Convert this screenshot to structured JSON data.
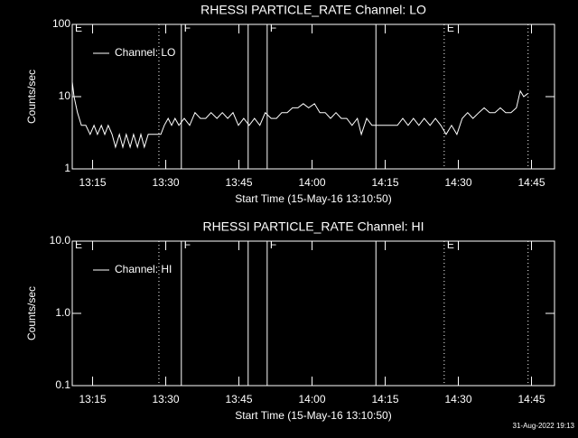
{
  "chart_data": [
    {
      "type": "line",
      "title": "RHESSI PARTICLE_RATE Channel: LO",
      "xlabel": "Start Time (15-May-16 13:10:50)",
      "ylabel": "Counts/sec",
      "log_scale": true,
      "xlim": [
        10.83,
        109.72
      ],
      "xticks": [
        {
          "value": 15,
          "label": "13:15"
        },
        {
          "value": 30,
          "label": "13:30"
        },
        {
          "value": 45,
          "label": "13:45"
        },
        {
          "value": 60,
          "label": "14:00"
        },
        {
          "value": 75,
          "label": "14:15"
        },
        {
          "value": 90,
          "label": "14:30"
        },
        {
          "value": 105,
          "label": "14:45"
        }
      ],
      "ylim": [
        1,
        100
      ],
      "yticks": [
        1,
        10,
        100
      ],
      "x": [
        10.83,
        11.2,
        11.9,
        12.7,
        13.6,
        14.5,
        15.3,
        16.0,
        16.8,
        17.5,
        18.2,
        19.0,
        19.7,
        20.5,
        21.2,
        21.9,
        22.7,
        23.4,
        24.2,
        24.9,
        25.6,
        26.4,
        29.0,
        29.7,
        30.5,
        31.2,
        31.9,
        32.7,
        33.8,
        34.9,
        36.0,
        37.1,
        38.2,
        39.3,
        40.5,
        41.6,
        42.7,
        43.8,
        44.9,
        46.0,
        47.1,
        48.2,
        49.3,
        50.4,
        51.6,
        52.7,
        53.8,
        54.9,
        56.0,
        57.1,
        58.2,
        59.3,
        60.5,
        61.6,
        62.7,
        63.8,
        64.9,
        66.0,
        67.1,
        68.2,
        69.3,
        70.1,
        71.2,
        72.3,
        73.8,
        77.5,
        78.6,
        79.7,
        80.8,
        81.9,
        83.0,
        84.2,
        85.3,
        86.4,
        87.5,
        88.6,
        89.7,
        90.8,
        91.9,
        93.0,
        94.2,
        95.3,
        96.4,
        97.5,
        98.6,
        99.7,
        100.8,
        101.9,
        102.7,
        103.4,
        104.2
      ],
      "series": [
        {
          "name": "Channel: LO",
          "color": "#ffffff",
          "values": [
            16,
            10,
            6,
            4,
            4,
            3,
            4,
            3,
            4,
            3,
            4,
            3,
            2,
            3,
            2,
            3,
            2,
            3,
            2,
            3,
            2,
            3,
            3,
            4,
            5,
            4,
            5,
            4,
            5,
            4,
            6,
            5,
            5,
            6,
            5,
            6,
            5,
            6,
            4,
            5,
            4,
            5,
            4,
            6,
            5,
            5,
            6,
            6,
            7,
            7,
            8,
            7,
            8,
            6,
            6,
            5,
            6,
            5,
            5,
            4,
            5,
            3,
            5,
            4,
            4,
            4,
            5,
            4,
            5,
            4,
            5,
            4,
            5,
            4,
            3,
            4,
            3,
            5,
            6,
            5,
            6,
            7,
            6,
            6,
            7,
            6,
            6,
            7,
            12,
            10,
            11
          ]
        }
      ],
      "vlines": [
        {
          "x": 28.6,
          "style": "dotted"
        },
        {
          "x": 33.2,
          "style": "solid"
        },
        {
          "x": 46.9,
          "style": "solid"
        },
        {
          "x": 50.8,
          "style": "solid"
        },
        {
          "x": 73.1,
          "style": "solid"
        },
        {
          "x": 87.1,
          "style": "dotted"
        },
        {
          "x": 104.3,
          "style": "dotted"
        }
      ],
      "flag_labels": [
        {
          "x": 10.83,
          "label": "E"
        },
        {
          "x": 33.2,
          "label": "F"
        },
        {
          "x": 50.8,
          "label": "F"
        },
        {
          "x": 87.1,
          "label": "E"
        }
      ]
    },
    {
      "type": "line",
      "title": "RHESSI PARTICLE_RATE Channel: HI",
      "xlabel": "Start Time (15-May-16 13:10:50)",
      "ylabel": "Counts/sec",
      "log_scale": true,
      "xlim": [
        10.83,
        109.72
      ],
      "xticks": [
        {
          "value": 15,
          "label": "13:15"
        },
        {
          "value": 30,
          "label": "13:30"
        },
        {
          "value": 45,
          "label": "13:45"
        },
        {
          "value": 60,
          "label": "14:00"
        },
        {
          "value": 75,
          "label": "14:15"
        },
        {
          "value": 90,
          "label": "14:30"
        },
        {
          "value": 105,
          "label": "14:45"
        }
      ],
      "ylim": [
        0.1,
        10
      ],
      "yticks": [
        {
          "value": 0.1,
          "label": "0.1"
        },
        {
          "value": 1,
          "label": "1.0"
        },
        {
          "value": 10,
          "label": "10.0"
        }
      ],
      "x": [],
      "series": [
        {
          "name": "Channel: HI",
          "color": "#ffffff",
          "values": []
        }
      ],
      "vlines": [
        {
          "x": 28.6,
          "style": "dotted"
        },
        {
          "x": 33.2,
          "style": "solid"
        },
        {
          "x": 46.9,
          "style": "solid"
        },
        {
          "x": 50.8,
          "style": "solid"
        },
        {
          "x": 73.1,
          "style": "solid"
        },
        {
          "x": 87.1,
          "style": "dotted"
        },
        {
          "x": 104.3,
          "style": "dotted"
        }
      ],
      "flag_labels": [
        {
          "x": 10.83,
          "label": "E"
        },
        {
          "x": 33.2,
          "label": "F"
        },
        {
          "x": 50.8,
          "label": "F"
        },
        {
          "x": 87.1,
          "label": "E"
        }
      ]
    }
  ],
  "footer": "31-Aug-2022 19:13"
}
